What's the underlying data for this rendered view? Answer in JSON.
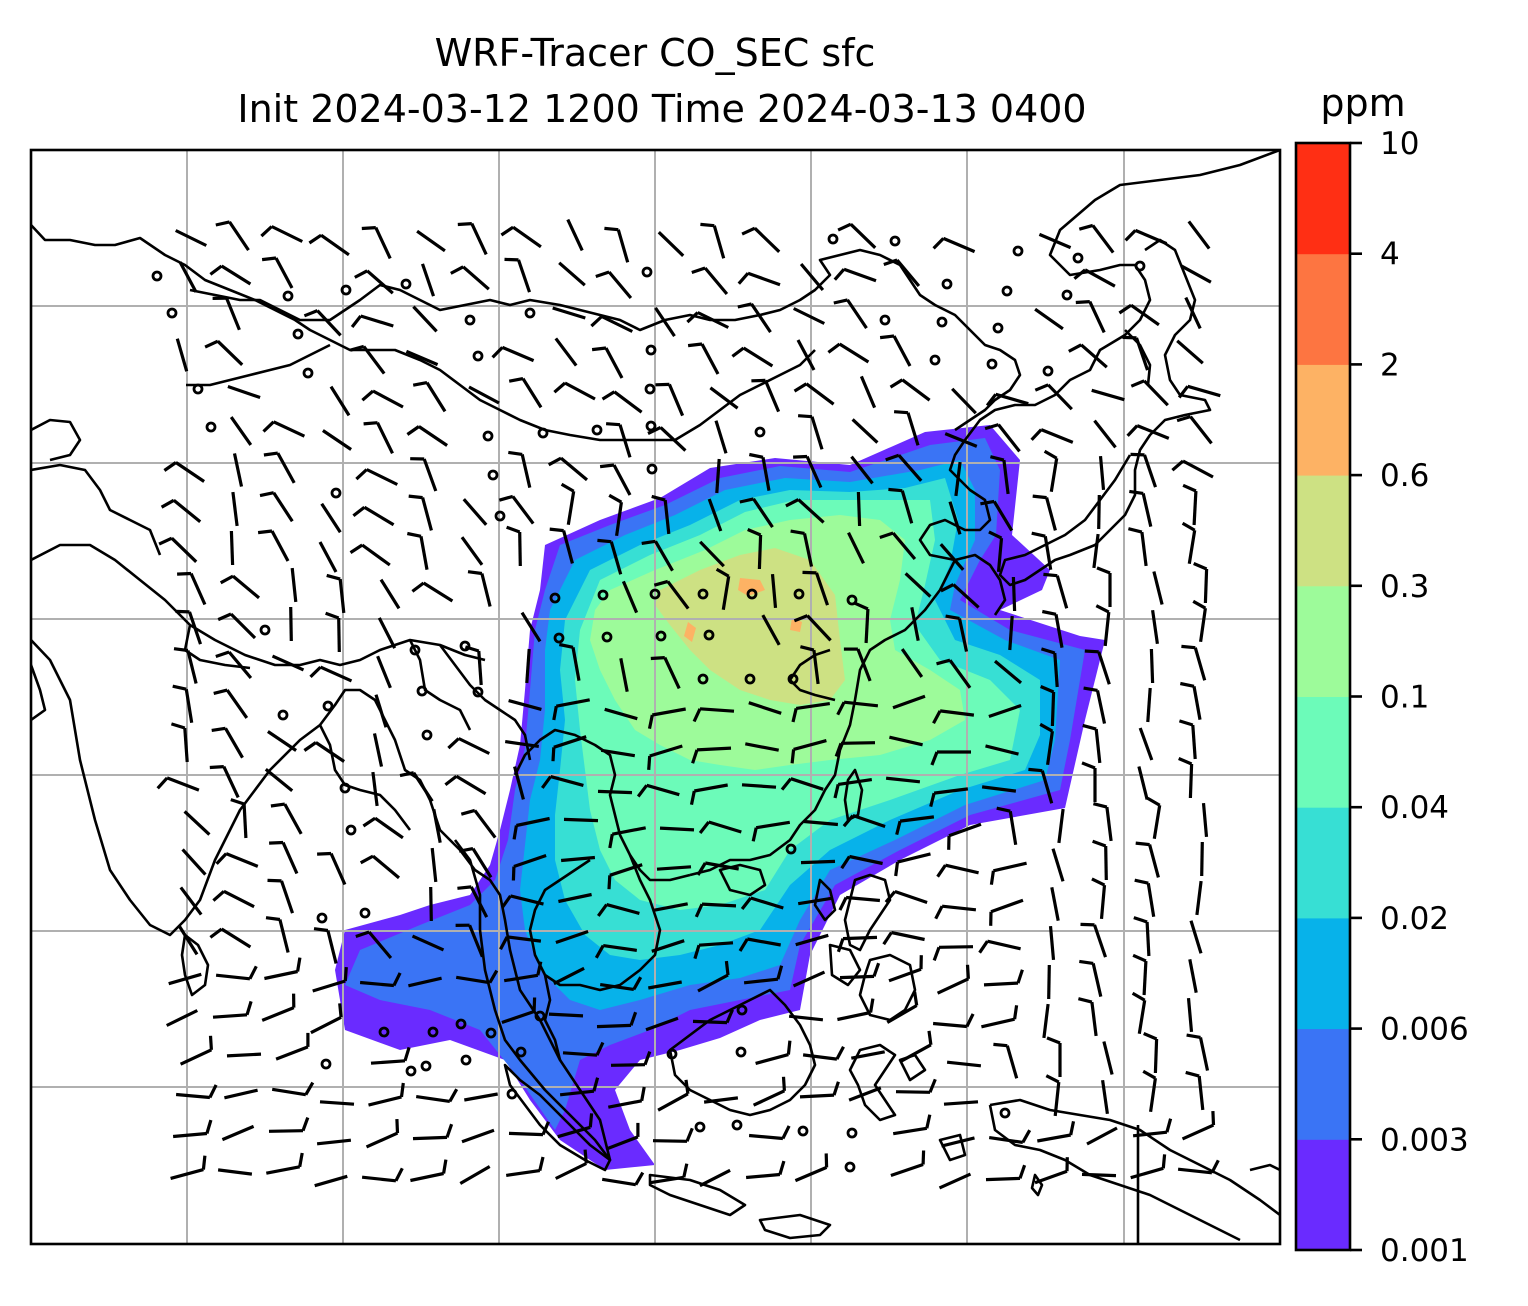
{
  "title": {
    "line1": "WRF-Tracer CO_SEC sfc",
    "line2": "Init 2024-03-12 1200 Time 2024-03-13 0400"
  },
  "colorbar": {
    "unit": "ppm",
    "levels": [
      "0.001",
      "0.003",
      "0.006",
      "0.02",
      "0.04",
      "0.1",
      "0.3",
      "0.6",
      "2",
      "4",
      "10"
    ],
    "colors": [
      "#6a2bff",
      "#3a74f5",
      "#07b2ea",
      "#37dfd4",
      "#6cfbb9",
      "#9dfb9a",
      "#cde183",
      "#fdb264",
      "#fd7541",
      "#ff2f14"
    ]
  },
  "colors": {
    "grid": "#b0b0b0",
    "coastline": "#000000",
    "background": "#ffffff"
  },
  "map": {
    "projection": "lambert-conformal",
    "gridlines": true,
    "wind": "barbs",
    "calm_marker": "circle"
  }
}
